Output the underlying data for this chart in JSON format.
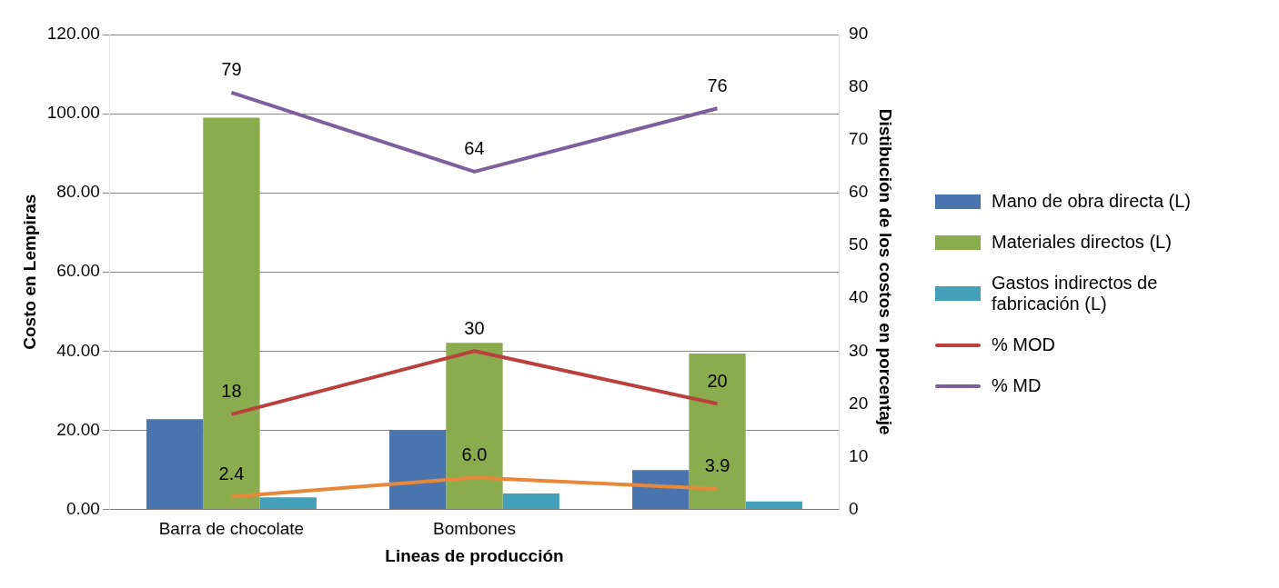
{
  "chart_data": {
    "type": "bar",
    "xlabel": "Lineas de producción",
    "ylabel": "Costo en Lempiras",
    "y2label": "Distibución de los costos en porcentaje",
    "categories": [
      "Barra de chocolate",
      "Bombones",
      null
    ],
    "series": [
      {
        "name": "Mano de obra directa (L)",
        "color": "#4a74ad",
        "values": [
          22.8,
          20.0,
          9.9
        ]
      },
      {
        "name": "Materiales directos (L)",
        "color": "#8aac4e",
        "values": [
          99.0,
          42.1,
          39.4
        ]
      },
      {
        "name": "Gastos indirectos de fabricación (L)",
        "color": "#43a0b8",
        "values": [
          3.0,
          4.0,
          2.0
        ]
      },
      {
        "name": "% MOD",
        "type": "line",
        "axis": "y2",
        "color": "#b9403c",
        "values": [
          18,
          30,
          20
        ],
        "value_labels": [
          "18",
          "30",
          "20"
        ]
      },
      {
        "name": "% MD",
        "type": "line",
        "axis": "y2",
        "color": "#7e5f9c",
        "values": [
          79,
          64,
          76
        ],
        "value_labels": [
          "79",
          "64",
          "76"
        ]
      },
      {
        "type": "line",
        "axis": "y2",
        "color": "#e8883a",
        "values": [
          2.4,
          6.0,
          3.9
        ],
        "value_labels": [
          "2.4",
          "6.0",
          "3.9"
        ]
      }
    ],
    "ylim": [
      0,
      120
    ],
    "yticks": [
      {
        "value": 0,
        "label": "0.00"
      },
      {
        "value": 20,
        "label": "20.00"
      },
      {
        "value": 40,
        "label": "40.00"
      },
      {
        "value": 60,
        "label": "60.00"
      },
      {
        "value": 80,
        "label": "80.00"
      },
      {
        "value": 100,
        "label": "100.00"
      },
      {
        "value": 120,
        "label": "120.00"
      }
    ],
    "y2lim": [
      0,
      90
    ],
    "y2ticks": [
      0,
      10,
      20,
      30,
      40,
      50,
      60,
      70,
      80,
      90
    ],
    "grid": "y",
    "legend": "right",
    "marker": "none"
  }
}
